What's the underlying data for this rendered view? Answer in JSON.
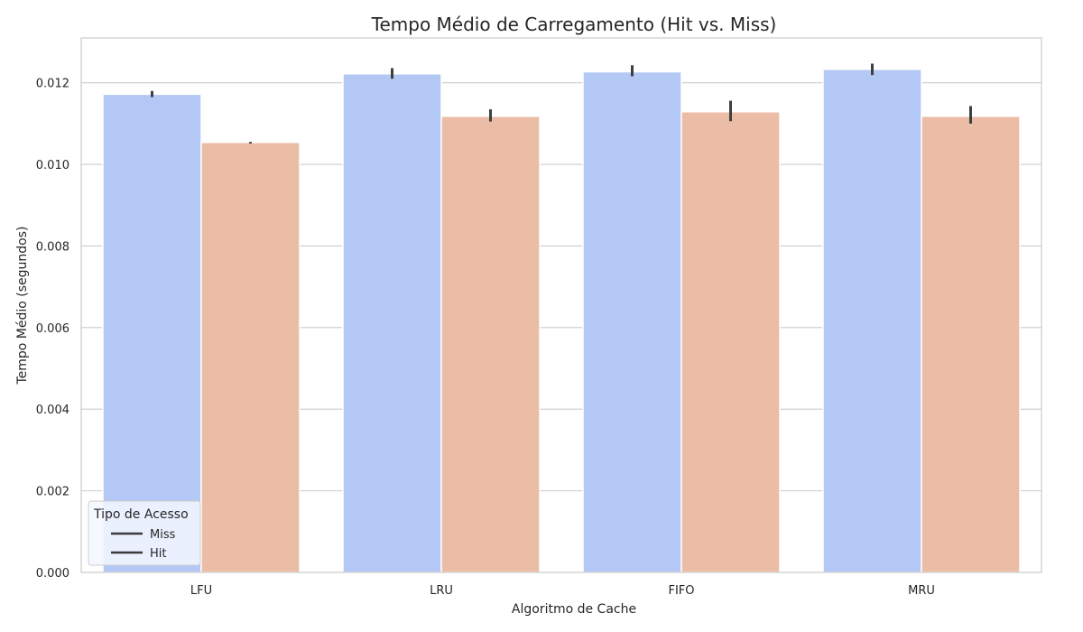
{
  "chart_data": {
    "type": "bar",
    "title": "Tempo Médio de Carregamento (Hit vs. Miss)",
    "xlabel": "Algoritmo de Cache",
    "ylabel": "Tempo Médio (segundos)",
    "categories": [
      "LFU",
      "LRU",
      "FIFO",
      "MRU"
    ],
    "ylim": [
      0,
      0.0131
    ],
    "yticks": [
      "0.000",
      "0.002",
      "0.004",
      "0.006",
      "0.008",
      "0.010",
      "0.012"
    ],
    "grid": true,
    "legend": {
      "title": "Tipo de Acesso",
      "placement": "lower-left"
    },
    "series": [
      {
        "name": "Miss",
        "color": "#b3c8f4",
        "values": [
          0.01172,
          0.01222,
          0.01227,
          0.01233
        ],
        "ci": [
          [
            0.01165,
            0.0118
          ],
          [
            0.0121,
            0.01236
          ],
          [
            0.01216,
            0.01243
          ],
          [
            0.01219,
            0.01247
          ]
        ]
      },
      {
        "name": "Hit",
        "color": "#ebbca6",
        "values": [
          0.01054,
          0.01118,
          0.01129,
          0.01118
        ],
        "ci": [
          [
            0.01051,
            0.01055
          ],
          [
            0.01105,
            0.01135
          ],
          [
            0.01106,
            0.01156
          ],
          [
            0.011,
            0.01143
          ]
        ]
      }
    ]
  }
}
